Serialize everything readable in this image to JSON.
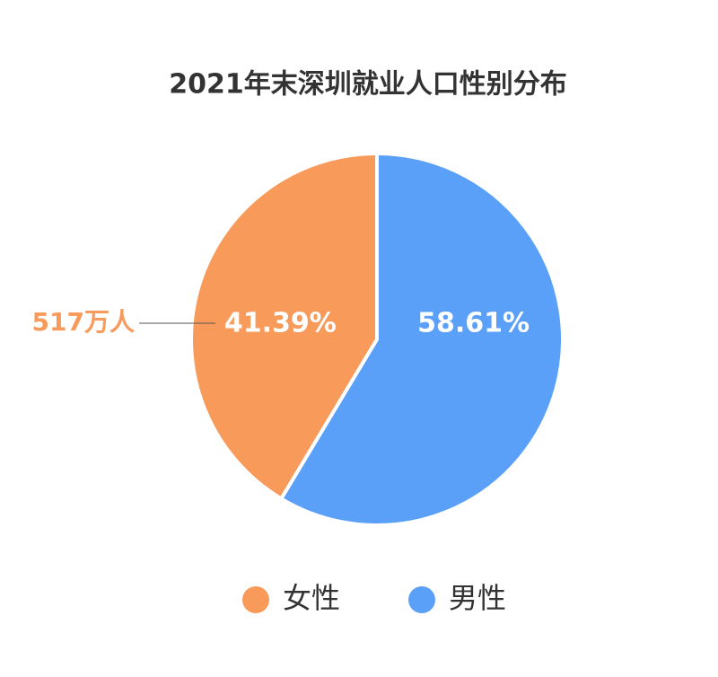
{
  "chart_data": {
    "type": "pie",
    "title": "2021年末深圳就业人口性别分布",
    "categories": [
      "女性",
      "男性"
    ],
    "values": [
      41.39,
      58.61
    ],
    "value_labels": [
      "41.39%",
      "58.61%"
    ],
    "colors": [
      "#f79a5a",
      "#5aa0f8"
    ],
    "annotation": "517万人",
    "annotation_color": "#f79a5a",
    "legend": "bottom"
  }
}
